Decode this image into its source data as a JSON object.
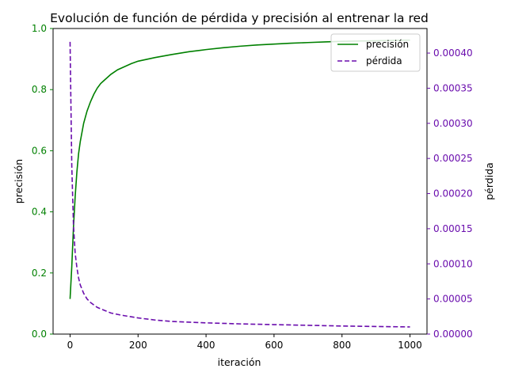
{
  "chart_data": {
    "type": "line",
    "title": "Evolución de función de pérdida y precisión al entrenar la red",
    "xlabel": "iteración",
    "ylabel_left": "precisión",
    "ylabel_right": "pérdida",
    "xlim": [
      -50,
      1050
    ],
    "ylim_left": [
      0,
      1
    ],
    "ylim_right": [
      0,
      0.000435
    ],
    "x_ticks": [
      "0",
      "200",
      "400",
      "600",
      "800",
      "1000"
    ],
    "y_ticks_left": [
      "0.0",
      "0.2",
      "0.4",
      "0.6",
      "0.8",
      "1.0"
    ],
    "y_ticks_right": [
      "0.00000",
      "0.00005",
      "0.00010",
      "0.00015",
      "0.00020",
      "0.00025",
      "0.00030",
      "0.00035",
      "0.00040"
    ],
    "grid": false,
    "legend_placement": "top-right",
    "series": [
      {
        "name": "precisión",
        "axis": "left",
        "color": "#008000",
        "style": "solid",
        "x": [
          0,
          5,
          10,
          15,
          20,
          25,
          30,
          40,
          50,
          60,
          70,
          80,
          90,
          100,
          120,
          140,
          160,
          180,
          200,
          250,
          300,
          350,
          400,
          450,
          500,
          550,
          600,
          650,
          700,
          750,
          800,
          850,
          900,
          950,
          1000
        ],
        "values": [
          0.115,
          0.22,
          0.35,
          0.45,
          0.53,
          0.59,
          0.63,
          0.69,
          0.73,
          0.76,
          0.785,
          0.805,
          0.82,
          0.83,
          0.85,
          0.865,
          0.875,
          0.885,
          0.893,
          0.905,
          0.915,
          0.924,
          0.931,
          0.937,
          0.942,
          0.946,
          0.949,
          0.952,
          0.954,
          0.956,
          0.958,
          0.959,
          0.96,
          0.961,
          0.962
        ]
      },
      {
        "name": "pérdida",
        "axis": "right",
        "color": "#6a0dad",
        "style": "dashed",
        "x": [
          0,
          5,
          10,
          15,
          20,
          25,
          30,
          40,
          50,
          60,
          80,
          100,
          120,
          150,
          200,
          250,
          300,
          400,
          500,
          600,
          700,
          800,
          900,
          1000
        ],
        "values": [
          0.000416,
          0.00024,
          0.000155,
          0.000115,
          9.5e-05,
          8e-05,
          7e-05,
          5.8e-05,
          5e-05,
          4.5e-05,
          3.8e-05,
          3.4e-05,
          3e-05,
          2.7e-05,
          2.3e-05,
          2e-05,
          1.8e-05,
          1.6e-05,
          1.45e-05,
          1.35e-05,
          1.25e-05,
          1.15e-05,
          1.08e-05,
          1.02e-05
        ]
      }
    ]
  }
}
